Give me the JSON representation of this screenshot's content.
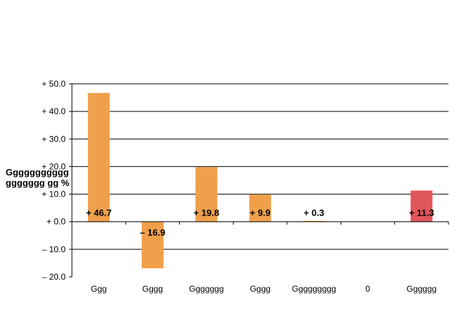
{
  "chart_data": {
    "type": "bar",
    "ylabel_lines": [
      "Ggggggggggg",
      "ggggggg gg %"
    ],
    "ylim": [
      -20,
      50
    ],
    "yticks": [
      50,
      40,
      30,
      20,
      10,
      0,
      -10,
      -20
    ],
    "ytick_labels": [
      "+ 50.0",
      "+ 40.0",
      "+ 30.0",
      "+ 20.0",
      "+ 10.0",
      "+ 0.0",
      "– 10.0",
      "– 20.0"
    ],
    "grid": true,
    "categories": [
      "Ggg",
      "Gggg",
      "Ggggggg",
      "Gggg",
      "Ggggggggg",
      "0",
      "Gggggg"
    ],
    "values": [
      46.7,
      -16.9,
      19.8,
      9.9,
      0.3,
      0,
      11.3
    ],
    "data_labels": [
      "+ 46.7",
      "– 16.9",
      "+ 19.8",
      "+ 9.9",
      "+ 0.3",
      "",
      "+ 11.3"
    ],
    "colors": [
      "#F0A04B",
      "#F0A04B",
      "#F0A04B",
      "#F0A04B",
      "#F0A04B",
      "#F0A04B",
      "#E0565B"
    ]
  }
}
